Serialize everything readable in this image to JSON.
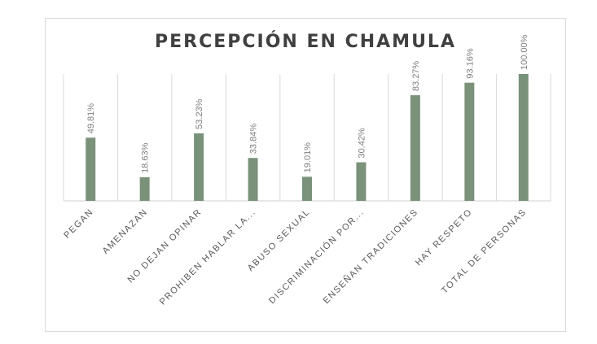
{
  "chart_data": {
    "type": "bar",
    "title": "PERCEPCIÓN EN CHAMULA",
    "categories": [
      "PEGAN",
      "AMENAZAN",
      "NO DEJAN OPINAR",
      "PROHIBEN HABLAR LA...",
      "ABUSO SEXUAL",
      "DISCRIMINACIÓN POR...",
      "ENSEÑAN TRADICIONES",
      "HAY RESPETO",
      "TOTAL DE PERSONAS"
    ],
    "values": [
      49.81,
      18.63,
      53.23,
      33.84,
      19.01,
      30.42,
      83.27,
      93.16,
      100.0
    ],
    "value_labels": [
      "49.81%",
      "18.63%",
      "53.23%",
      "33.84%",
      "19.01%",
      "30.42%",
      "83.27%",
      "93.16%",
      "100.00%"
    ],
    "ylim": [
      0,
      100
    ],
    "grid": "vertical",
    "legend": "none",
    "bar_color": "#7a927a"
  }
}
